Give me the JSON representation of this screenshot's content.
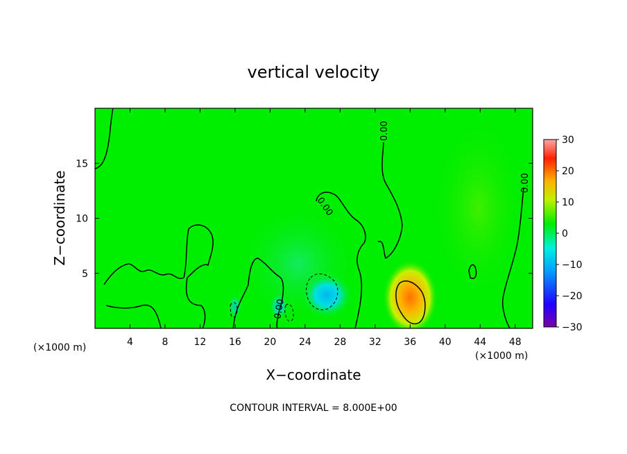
{
  "chart_data": {
    "type": "heatmap",
    "title": "vertical velocity",
    "xlabel": "X−coordinate",
    "ylabel": "Z−coordinate",
    "x_unit_label_left": "(×1000 m)",
    "x_unit_label_right": "(×1000 m)",
    "xlim": [
      0,
      50
    ],
    "ylim": [
      0,
      20
    ],
    "x_ticks": [
      4,
      8,
      12,
      16,
      20,
      24,
      28,
      32,
      36,
      40,
      44,
      48
    ],
    "y_ticks": [
      5,
      10,
      15
    ],
    "x_tick_labels": [
      "4",
      "8",
      "12",
      "16",
      "20",
      "24",
      "28",
      "32",
      "36",
      "40",
      "44",
      "48"
    ],
    "y_tick_labels": [
      "5",
      "10",
      "15"
    ],
    "colorbar": {
      "range": [
        -30,
        30
      ],
      "ticks": [
        30,
        20,
        10,
        0,
        -10,
        -20,
        -30
      ],
      "tick_labels": [
        "30",
        "20",
        "10",
        "0",
        "−10",
        "−20",
        "−30"
      ],
      "colors": [
        "#7a00a8",
        "#1f00ff",
        "#00a0ff",
        "#00f0e8",
        "#00ee00",
        "#d8f000",
        "#ffa000",
        "#ff2000",
        "#ffa0a0"
      ]
    },
    "background_value": 0,
    "features": [
      {
        "x": 36,
        "z": 2.8,
        "value": 16,
        "kind": "updraft max"
      },
      {
        "x": 26.5,
        "z": 3.0,
        "value": -10,
        "kind": "downdraft min"
      },
      {
        "x": 21,
        "z": 2.0,
        "value": -5,
        "kind": "downdraft"
      },
      {
        "x": 16,
        "z": 2.0,
        "value": -4,
        "kind": "downdraft"
      }
    ],
    "contour_labels": [
      "0.00",
      "0.00",
      "0.00",
      "0.00"
    ],
    "contour_interval_text": "CONTOUR INTERVAL = 8.000E+00",
    "grid": false
  }
}
